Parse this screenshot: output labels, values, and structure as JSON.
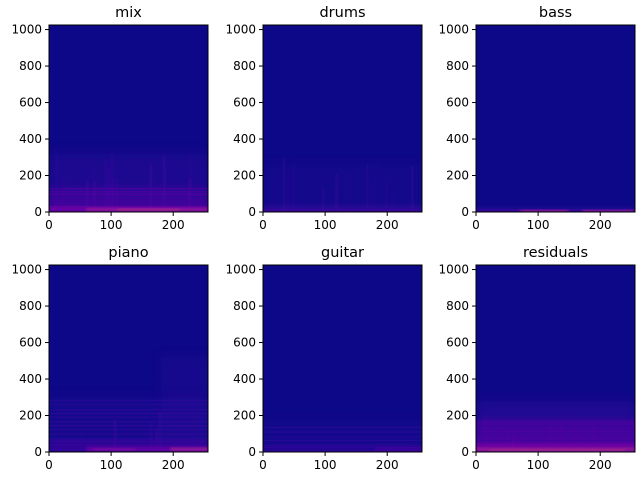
{
  "figure": {
    "background": "#ffffff",
    "colormap": "plasma",
    "background_color": "#0d0887"
  },
  "chart_data": [
    {
      "type": "heatmap",
      "title": "mix",
      "xlim": [
        0,
        256
      ],
      "ylim": [
        0,
        1025
      ],
      "xticks": [
        0,
        100,
        200
      ],
      "yticks": [
        0,
        200,
        400,
        600,
        800,
        1000
      ],
      "intensity_profile": "Broadband energy concentrated below ~40 bins with faint vertical onset streaks up to ~300 bins"
    },
    {
      "type": "heatmap",
      "title": "drums",
      "xlim": [
        0,
        256
      ],
      "ylim": [
        0,
        1025
      ],
      "xticks": [
        0,
        100,
        200
      ],
      "yticks": [
        0,
        200,
        400,
        600,
        800,
        1000
      ],
      "intensity_profile": "Very faint energy near the bottom with scattered vertical onset streaks"
    },
    {
      "type": "heatmap",
      "title": "bass",
      "xlim": [
        0,
        256
      ],
      "ylim": [
        0,
        1025
      ],
      "xticks": [
        0,
        100,
        200
      ],
      "yticks": [
        0,
        200,
        400,
        600,
        800,
        1000
      ],
      "intensity_profile": "Thin bright band at the lowest bins (<20), stronger around x 70-150 and 170-256"
    },
    {
      "type": "heatmap",
      "title": "piano",
      "xlim": [
        0,
        256
      ],
      "ylim": [
        0,
        1025
      ],
      "xticks": [
        0,
        100,
        200
      ],
      "yticks": [
        0,
        200,
        400,
        600,
        800,
        1000
      ],
      "intensity_profile": "Harmonic horizontal lines in low bins, faint energy up to ~500 bins, brighter after x ~200"
    },
    {
      "type": "heatmap",
      "title": "guitar",
      "xlim": [
        0,
        256
      ],
      "ylim": [
        0,
        1025
      ],
      "xticks": [
        0,
        100,
        200
      ],
      "yticks": [
        0,
        200,
        400,
        600,
        800,
        1000
      ],
      "intensity_profile": "Faint harmonic lines below ~150 bins"
    },
    {
      "type": "heatmap",
      "title": "residuals",
      "xlim": [
        0,
        256
      ],
      "ylim": [
        0,
        1025
      ],
      "xticks": [
        0,
        100,
        200
      ],
      "yticks": [
        0,
        200,
        400,
        600,
        800,
        1000
      ],
      "intensity_profile": "Diffuse purple haze below ~200 bins with bright band at lowest bins"
    }
  ]
}
